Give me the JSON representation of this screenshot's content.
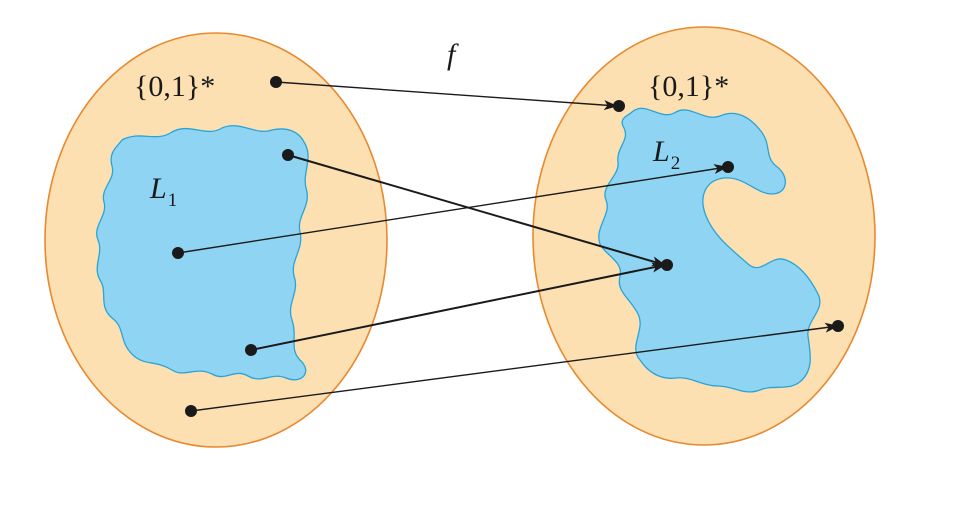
{
  "map_label": "f",
  "domain_set": {
    "label": "{0,1}*"
  },
  "codomain_set": {
    "label": "{0,1}*"
  },
  "language_1": {
    "letter": "L",
    "subscript": "1"
  },
  "language_2": {
    "letter": "L",
    "subscript": "2"
  },
  "mappings": [
    {
      "from": "point outside L1",
      "to": "point outside L2"
    },
    {
      "from": "point in L1",
      "to": "point in L2"
    },
    {
      "from": "point in L1",
      "to": "point in L2"
    },
    {
      "from": "point in L1",
      "to": "point in L2"
    },
    {
      "from": "point outside L1",
      "to": "point outside L2"
    }
  ]
}
